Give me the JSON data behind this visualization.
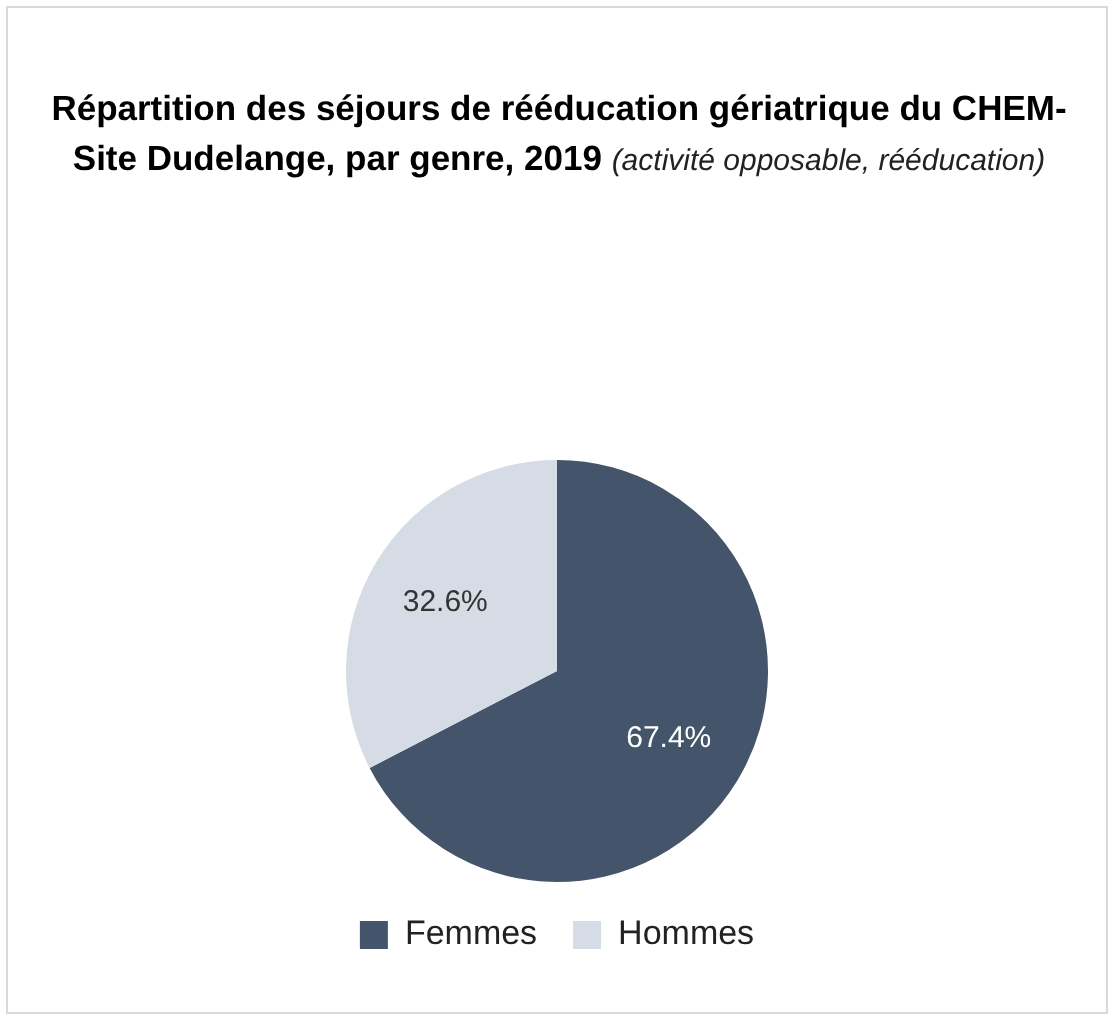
{
  "chart_data": {
    "type": "pie",
    "title": "Répartition des séjours de rééducation gériatrique du CHEM-Site Dudelange, par genre, 2019",
    "subtitle": "(activité opposable, rééducation)",
    "categories": [
      "Femmes",
      "Hommes"
    ],
    "values": [
      67.4,
      32.6
    ],
    "colors": [
      "#44546a",
      "#d6dce5"
    ],
    "value_labels": [
      "67.4%",
      "32.6%"
    ],
    "legend": "bottom"
  }
}
